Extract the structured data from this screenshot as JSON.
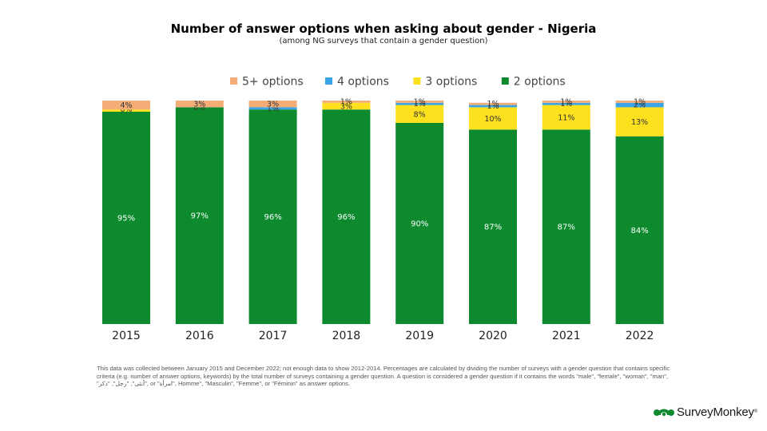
{
  "header": {
    "title": "Number of answer options when asking about gender - Nigeria",
    "subtitle": "(among NG surveys that contain a gender question)"
  },
  "chart_data": {
    "type": "bar",
    "stacked": true,
    "title": "Number of answer options when asking about gender - Nigeria",
    "subtitle": "(among NG surveys that contain a gender question)",
    "xlabel": "",
    "ylabel": "",
    "ylim": [
      0,
      100
    ],
    "grid": false,
    "legend_position": "top",
    "categories": [
      "2015",
      "2016",
      "2017",
      "2018",
      "2019",
      "2020",
      "2021",
      "2022"
    ],
    "series": [
      {
        "name": "2 options",
        "color": "#0d8a2e",
        "values": [
          95,
          97,
          96,
          96,
          90,
          87,
          87,
          84
        ],
        "labels": [
          "95%",
          "97%",
          "96%",
          "96%",
          "90%",
          "87%",
          "87%",
          "84%"
        ]
      },
      {
        "name": "3 options",
        "color": "#fde01e",
        "values": [
          1,
          0,
          0,
          3,
          8,
          10,
          11,
          13
        ],
        "labels": [
          "",
          "",
          "",
          "3%",
          "8%",
          "10%",
          "11%",
          "13%"
        ]
      },
      {
        "name": "4 options",
        "color": "#3aa4e6",
        "values": [
          0,
          0,
          1,
          0,
          1,
          1,
          1,
          2
        ],
        "labels": [
          "0%",
          "0%",
          "1%",
          "",
          "1%",
          "1%",
          "1%",
          "2%"
        ]
      },
      {
        "name": "5+ options",
        "color": "#f5ad77",
        "values": [
          4,
          3,
          3,
          1,
          1,
          1,
          1,
          1
        ],
        "labels": [
          "4%",
          "3%",
          "3%",
          "1%",
          "1%",
          "1%",
          "1%",
          "1%"
        ]
      }
    ],
    "legend": [
      "5+ options",
      "4 options",
      "3 options",
      "2 options"
    ]
  },
  "footnote": "This data was collected between January 2015 and December 2022; not enough data to show 2012-2014. Percentages are calculated by dividing the number of surveys with a gender question that contains specific criteria (e.g. number of answer options, keywords) by the total number of surveys containing a gender question. A question is considered a gender question if it contains the words \"male\", \"female\", \"woman\", \"man\", \"ﺃﻧﺜﻰ\", \"ﺭﺟﻞ\", \"ﺫﻛﺮ\", or \"ﺍﻣﺮﺃﺓ\", Homme\", \"Masculin\", \"Femme\", or \"Féminin\" as answer options.",
  "brand": {
    "name": "SurveyMonkey",
    "tm": "®"
  }
}
